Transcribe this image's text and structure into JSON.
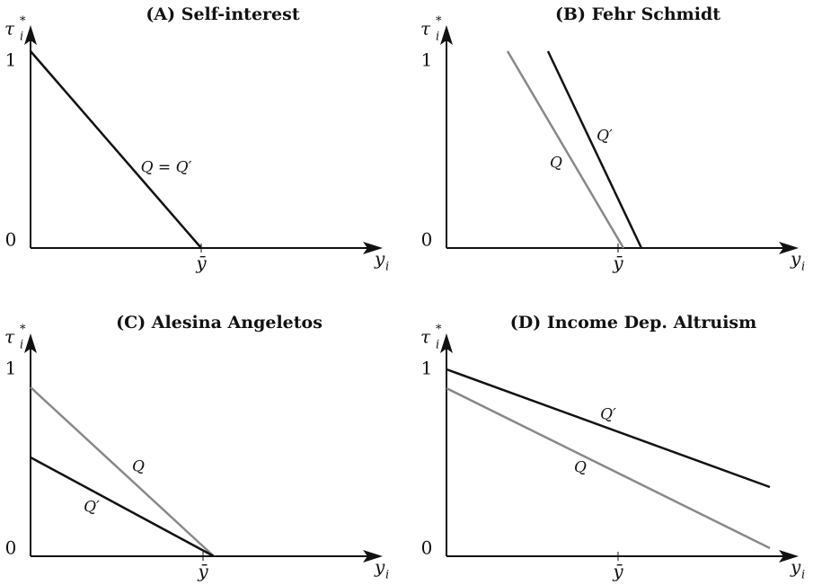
{
  "panels": [
    {
      "title": "(A) Self-interest",
      "y_axis": {
        "symbol": "τ",
        "sup": "*",
        "sub": "i"
      },
      "x_axis": {
        "symbol": "y",
        "sub": "i"
      },
      "y_ticks": [
        "1",
        "0"
      ],
      "x_tick": "ȳ",
      "curves": [
        {
          "label": "Q = Q′"
        }
      ]
    },
    {
      "title": "(B) Fehr Schmidt",
      "y_axis": {
        "symbol": "τ",
        "sup": "*",
        "sub": "i"
      },
      "x_axis": {
        "symbol": "y",
        "sub": "i"
      },
      "y_ticks": [
        "1",
        "0"
      ],
      "x_tick": "ȳ",
      "curves": [
        {
          "label": "Q"
        },
        {
          "label": "Q′"
        }
      ]
    },
    {
      "title": "(C) Alesina Angeletos",
      "y_axis": {
        "symbol": "τ",
        "sup": "*",
        "sub": "i"
      },
      "x_axis": {
        "symbol": "y",
        "sub": "i"
      },
      "y_ticks": [
        "1",
        "0"
      ],
      "x_tick": "ȳ",
      "curves": [
        {
          "label": "Q"
        },
        {
          "label": "Q′"
        }
      ]
    },
    {
      "title": "(D) Income Dep. Altruism",
      "y_axis": {
        "symbol": "τ",
        "sup": "*",
        "sub": "i"
      },
      "x_axis": {
        "symbol": "y",
        "sub": "i"
      },
      "y_ticks": [
        "1",
        "0"
      ],
      "x_tick": "ȳ",
      "curves": [
        {
          "label": "Q"
        },
        {
          "label": "Q′"
        }
      ]
    }
  ]
}
